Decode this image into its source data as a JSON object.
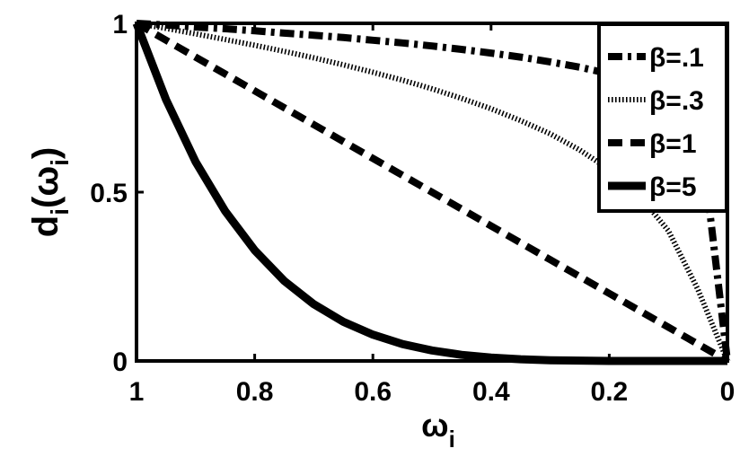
{
  "chart_data": {
    "type": "line",
    "xlabel": {
      "main": "ω",
      "sub": "i"
    },
    "ylabel": {
      "main": "d",
      "sub": "i",
      "open": "(ω",
      "sub2": "i",
      "close": ")"
    },
    "xlim": [
      1,
      0
    ],
    "ylim": [
      0,
      1
    ],
    "x_reversed": true,
    "xticks": [
      1,
      0.8,
      0.6,
      0.4,
      0.2,
      0
    ],
    "xtick_labels": [
      "1",
      "0.8",
      "0.6",
      "0.4",
      "0.2",
      "0"
    ],
    "yticks": [
      0,
      0.5,
      1
    ],
    "ytick_labels": [
      "0",
      "0.5",
      "1"
    ],
    "grid": false,
    "legend_position": "top-right",
    "x": [
      1,
      0.95,
      0.9,
      0.85,
      0.8,
      0.75,
      0.7,
      0.65,
      0.6,
      0.55,
      0.5,
      0.45,
      0.4,
      0.35,
      0.3,
      0.25,
      0.2,
      0.15,
      0.1,
      0.05,
      0
    ],
    "series": [
      {
        "name": "β=.1",
        "style": "dashdot",
        "color": "#000000",
        "values": [
          1.0,
          0.995,
          0.989,
          0.984,
          0.978,
          0.971,
          0.965,
          0.958,
          0.95,
          0.942,
          0.933,
          0.923,
          0.912,
          0.9,
          0.886,
          0.87,
          0.851,
          0.827,
          0.794,
          0.741,
          0.0
        ]
      },
      {
        "name": "β=.3",
        "style": "dotted",
        "color": "#000000",
        "values": [
          1.0,
          0.985,
          0.969,
          0.952,
          0.935,
          0.917,
          0.898,
          0.877,
          0.855,
          0.832,
          0.806,
          0.778,
          0.747,
          0.712,
          0.673,
          0.625,
          0.567,
          0.492,
          0.386,
          0.212,
          0.0
        ]
      },
      {
        "name": "β=1",
        "style": "dashed",
        "color": "#000000",
        "values": [
          1.0,
          0.95,
          0.9,
          0.85,
          0.8,
          0.75,
          0.7,
          0.65,
          0.6,
          0.55,
          0.5,
          0.45,
          0.4,
          0.35,
          0.3,
          0.25,
          0.2,
          0.15,
          0.1,
          0.05,
          0.0
        ]
      },
      {
        "name": "β=5",
        "style": "solid",
        "color": "#000000",
        "values": [
          1.0,
          0.774,
          0.59,
          0.444,
          0.328,
          0.237,
          0.168,
          0.116,
          0.078,
          0.05,
          0.031,
          0.018,
          0.01,
          0.005,
          0.002,
          0.001,
          0.0,
          0.0,
          0.0,
          0.0,
          0.0
        ]
      }
    ]
  }
}
